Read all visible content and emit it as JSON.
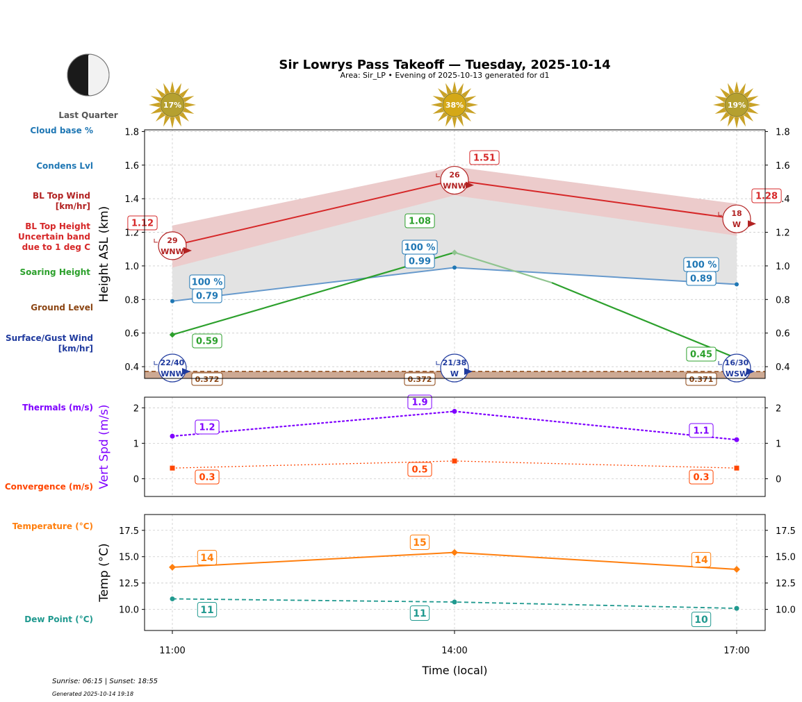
{
  "header": {
    "title": "Sir Lowrys Pass Takeoff — Tuesday, 2025-10-14",
    "subtitle": "Area: Sir_LP • Evening of 2025-10-13 generated for d1",
    "moon_phase": "Last Quarter"
  },
  "footer": {
    "sun_times": "Sunrise: 06:15 | Sunset: 18:55",
    "generated": "Generated 2025-10-14 19:18"
  },
  "legend_labels": {
    "cloud_base": "Cloud base %",
    "condens": "Condens Lvl",
    "bl_top_wind_1": "BL Top Wind",
    "bl_top_wind_2": "[km/hr]",
    "bl_height_1": "BL Top Height",
    "bl_height_2": "Uncertain band",
    "bl_height_3": "due to 1 deg C",
    "soaring": "Soaring Height",
    "ground": "Ground Level",
    "surface_wind_1": "Surface/Gust Wind",
    "surface_wind_2": "[km/hr]",
    "thermals": "Thermals (m/s)",
    "convergence": "Convergence (m/s)",
    "temperature": "Temperature (°C)",
    "dewpoint": "Dew Point (°C)"
  },
  "colors": {
    "bl_top": "#d62728",
    "condens": "#1f77b4",
    "soaring": "#2ca02c",
    "ground": "#8b4513",
    "surface_wind": "#1f3a9e",
    "thermals": "#7f00ff",
    "convergence": "#ff4500",
    "temperature": "#ff7f0e",
    "dewpoint": "#20998f",
    "sun": "#d4a017"
  },
  "chart_data": [
    {
      "id": "height",
      "type": "line",
      "ylabel": "Height ASL (km)",
      "ylim": [
        0.33,
        1.81
      ],
      "yticks": [
        0.4,
        0.6,
        0.8,
        1.0,
        1.2,
        1.4,
        1.6,
        1.8
      ],
      "x": [
        "11:00",
        "14:00",
        "17:00"
      ],
      "sun_percent": [
        "17%",
        "38%",
        "19%"
      ],
      "series": [
        {
          "key": "bl_top",
          "values": [
            1.12,
            1.51,
            1.28
          ],
          "labels": [
            "1.12",
            "1.51",
            "1.28"
          ],
          "band_upper": [
            1.24,
            1.59,
            1.37
          ],
          "band_lower": [
            0.99,
            1.42,
            1.18
          ]
        },
        {
          "key": "condens",
          "values": [
            0.79,
            0.99,
            0.89
          ],
          "labels": [
            "0.79",
            "0.99",
            "0.89"
          ],
          "cloud_base_labels": [
            "100 %",
            "100 %",
            "100 %"
          ]
        },
        {
          "key": "soaring",
          "values": [
            0.59,
            1.08,
            0.45
          ],
          "labels": [
            "0.59",
            "1.08",
            "0.45"
          ]
        },
        {
          "key": "ground",
          "values": [
            0.372,
            0.372,
            0.371
          ],
          "labels": [
            "0.372",
            "0.372",
            "0.371"
          ]
        }
      ],
      "bl_wind": [
        {
          "speed": "29",
          "dir": "WNW"
        },
        {
          "speed": "26",
          "dir": "WNW"
        },
        {
          "speed": "18",
          "dir": "W"
        }
      ],
      "surface_wind": [
        {
          "speed": "22/40",
          "dir": "WNW"
        },
        {
          "speed": "21/38",
          "dir": "W"
        },
        {
          "speed": "16/30",
          "dir": "WSW"
        }
      ]
    },
    {
      "id": "vert",
      "type": "line",
      "ylabel": "Vert Spd (m/s)",
      "ylim": [
        -0.5,
        2.3
      ],
      "yticks": [
        0,
        1,
        2
      ],
      "x": [
        "11:00",
        "14:00",
        "17:00"
      ],
      "series": [
        {
          "key": "thermals",
          "values": [
            1.2,
            1.9,
            1.1
          ],
          "labels": [
            "1.2",
            "1.9",
            "1.1"
          ]
        },
        {
          "key": "convergence",
          "values": [
            0.3,
            0.5,
            0.3
          ],
          "labels": [
            "0.3",
            "0.5",
            "0.3"
          ]
        }
      ]
    },
    {
      "id": "temp",
      "type": "line",
      "ylabel": "Temp (°C)",
      "xlabel": "Time (local)",
      "ylim": [
        8.0,
        19.0
      ],
      "yticks": [
        10.0,
        12.5,
        15.0,
        17.5
      ],
      "ytick_labels": [
        "10.0",
        "12.5",
        "15.0",
        "17.5"
      ],
      "x": [
        "11:00",
        "14:00",
        "17:00"
      ],
      "series": [
        {
          "key": "temperature",
          "values": [
            14.0,
            15.4,
            13.8
          ],
          "labels": [
            "14",
            "15",
            "14"
          ]
        },
        {
          "key": "dewpoint",
          "values": [
            11.0,
            10.7,
            10.1
          ],
          "labels": [
            "11",
            "11",
            "10"
          ]
        }
      ]
    }
  ]
}
